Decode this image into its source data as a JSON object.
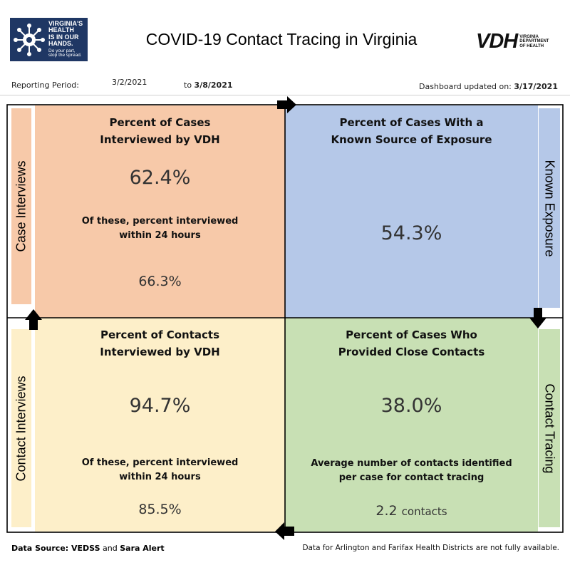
{
  "header": {
    "title": "COVID-19 Contact Tracing in Virginia",
    "logo_left": {
      "headline": [
        "VIRGINIA'S",
        "HEALTH",
        "IS IN OUR",
        "HANDS."
      ],
      "tagline": [
        "Do your part,",
        "stop the spread."
      ],
      "background_color": "#1f3764"
    },
    "logo_right": {
      "mark": "VDH",
      "subtitle": [
        "VIRGINIA",
        "DEPARTMENT",
        "OF HEALTH"
      ]
    }
  },
  "reporting": {
    "label": "Reporting Period:",
    "start": "3/2/2021",
    "to_label": "to",
    "end": "3/8/2021",
    "updated_label": "Dashboard updated on:",
    "updated_date": "3/17/2021"
  },
  "sides": {
    "case_interviews": "Case Interviews",
    "known_exposure": "Known Exposure",
    "contact_interviews": "Contact Interviews",
    "contact_tracing": "Contact Tracing"
  },
  "quadrants": {
    "cases_interviewed": {
      "title": [
        "Percent of Cases",
        "Interviewed by VDH"
      ],
      "value": "62.4%",
      "note": [
        "Of these, percent interviewed",
        "within 24 hours"
      ],
      "sub_value": "66.3%",
      "color": "#f7c9a9"
    },
    "known_source": {
      "title": [
        "Percent of Cases With a",
        "Known Source of Exposure"
      ],
      "value": "54.3%",
      "color": "#b5c8e8"
    },
    "contacts_interviewed": {
      "title": [
        "Percent of Contacts",
        "Interviewed by VDH"
      ],
      "value": "94.7%",
      "note": [
        "Of these, percent interviewed",
        "within 24 hours"
      ],
      "sub_value": "85.5%",
      "color": "#fdefc9"
    },
    "close_contacts": {
      "title": [
        "Percent of Cases Who",
        "Provided Close Contacts"
      ],
      "value": "38.0%",
      "note": [
        "Average number of contacts identified",
        "per case for contact tracing"
      ],
      "sub_value": "2.2",
      "sub_unit": "contacts",
      "color": "#c8e0b4"
    }
  },
  "footer": {
    "source_label": "Data Source: VEDSS",
    "source_and": "and",
    "source_second": "Sara Alert",
    "note": "Data for Arlington and Farifax Health Districts are not fully available."
  }
}
